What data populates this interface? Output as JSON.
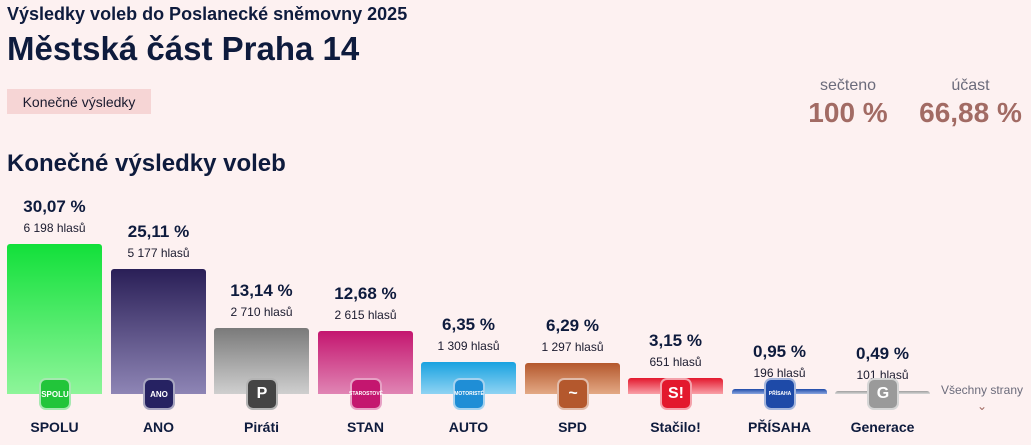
{
  "header": {
    "supertitle": "Výsledky voleb do Poslanecké sněmovny 2025",
    "title": "Městská část Praha 14",
    "badge": "Konečné výsledky"
  },
  "stats": {
    "counted_label": "sečteno",
    "counted_value": "100 %",
    "turnout_label": "účast",
    "turnout_value": "66,88 %"
  },
  "section_title": "Konečné výsledky voleb",
  "all_parties_label": "Všechny strany",
  "chart_data": {
    "type": "bar",
    "title": "",
    "xlabel": "",
    "ylabel": "",
    "ylim": [
      0,
      30.07
    ],
    "grid": false,
    "categories": [
      "SPOLU",
      "ANO",
      "Piráti",
      "STAN",
      "AUTO",
      "SPD",
      "Stačilo!",
      "PŘÍSAHA",
      "Generace"
    ],
    "values": [
      30.07,
      25.11,
      13.14,
      12.68,
      6.35,
      6.29,
      3.15,
      0.95,
      0.49
    ],
    "percent_labels": [
      "30,07 %",
      "25,11 %",
      "13,14 %",
      "12,68 %",
      "6,35 %",
      "6,29 %",
      "3,15 %",
      "0,95 %",
      "0,49 %"
    ],
    "vote_labels": [
      "6 198 hlasů",
      "5 177 hlasů",
      "2 710 hlasů",
      "2 615 hlasů",
      "1 309 hlasů",
      "1 297 hlasů",
      "651 hlasů",
      "196 hlasů",
      "101 hlasů"
    ],
    "logo_text": [
      "SPOLU",
      "ANO",
      "P",
      "STAROSTOVÉ",
      "MOTORISTÉ",
      "~",
      "S!",
      "PŘÍSAHA",
      "G"
    ],
    "colors": [
      {
        "top": "#12e03a",
        "bottom": "#8ef59a",
        "logo": "#22c53a"
      },
      {
        "top": "#2a1f57",
        "bottom": "#8e85b5",
        "logo": "#262262"
      },
      {
        "top": "#7a7a7a",
        "bottom": "#cfcfcf",
        "logo": "#444444"
      },
      {
        "top": "#c4166f",
        "bottom": "#e085b4",
        "logo": "#c4166f"
      },
      {
        "top": "#19a2e0",
        "bottom": "#8fd3f3",
        "logo": "#1f8ed6"
      },
      {
        "top": "#b4582d",
        "bottom": "#e3a985",
        "logo": "#b4582d"
      },
      {
        "top": "#e3182d",
        "bottom": "#f9a0a8",
        "logo": "#e3182d"
      },
      {
        "top": "#1e4aa8",
        "bottom": "#8aa6e0",
        "logo": "#1e4aa8"
      },
      {
        "top": "#9e9e9e",
        "bottom": "#d8d8d8",
        "logo": "#9a9a9a"
      }
    ]
  }
}
